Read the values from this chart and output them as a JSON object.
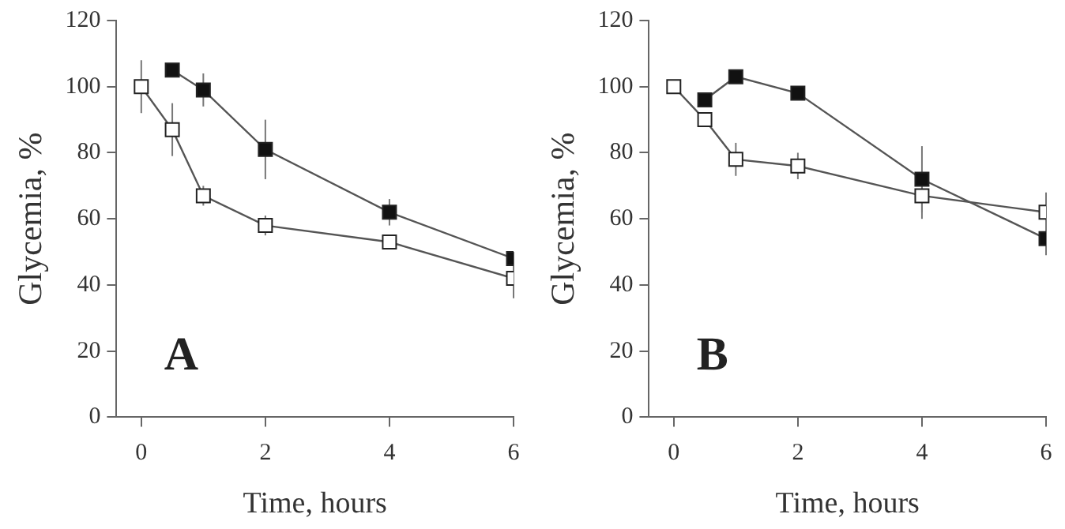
{
  "chart_data": [
    {
      "type": "line",
      "xlabel": "Time, hours",
      "ylabel": "Glycemia, %",
      "xlim": [
        -0.4,
        6
      ],
      "ylim": [
        0,
        120
      ],
      "xticks": [
        0,
        2,
        4,
        6
      ],
      "yticks": [
        0,
        20,
        40,
        60,
        80,
        100,
        120
      ],
      "marker": "square",
      "grid": false,
      "legend": false,
      "annotations": [
        "A"
      ],
      "series": [
        {
          "color": "#111111",
          "x": [
            0.5,
            1,
            2,
            4,
            6
          ],
          "values": [
            105,
            99,
            81,
            62,
            48
          ],
          "errors": [
            2,
            5,
            9,
            4,
            2
          ]
        },
        {
          "color": "#ffffff",
          "x": [
            0,
            0.5,
            1,
            2,
            4,
            6
          ],
          "values": [
            100,
            87,
            67,
            58,
            53,
            42
          ],
          "errors": [
            8,
            8,
            3,
            3,
            2,
            6
          ]
        }
      ]
    },
    {
      "type": "line",
      "xlabel": "Time, hours",
      "ylabel": "Glycemia, %",
      "xlim": [
        -0.4,
        6
      ],
      "ylim": [
        0,
        120
      ],
      "xticks": [
        0,
        2,
        4,
        6
      ],
      "yticks": [
        0,
        20,
        40,
        60,
        80,
        100,
        120
      ],
      "marker": "square",
      "grid": false,
      "legend": false,
      "annotations": [
        "B"
      ],
      "series": [
        {
          "color": "#111111",
          "x": [
            0.5,
            1,
            2,
            4,
            6
          ],
          "values": [
            96,
            103,
            98,
            72,
            54
          ],
          "errors": [
            2,
            2,
            2,
            10,
            5
          ]
        },
        {
          "color": "#ffffff",
          "x": [
            0,
            0.5,
            1,
            2,
            4,
            6
          ],
          "values": [
            100,
            90,
            78,
            76,
            67,
            62
          ],
          "errors": [
            2,
            2,
            5,
            4,
            7,
            6
          ]
        }
      ]
    }
  ]
}
